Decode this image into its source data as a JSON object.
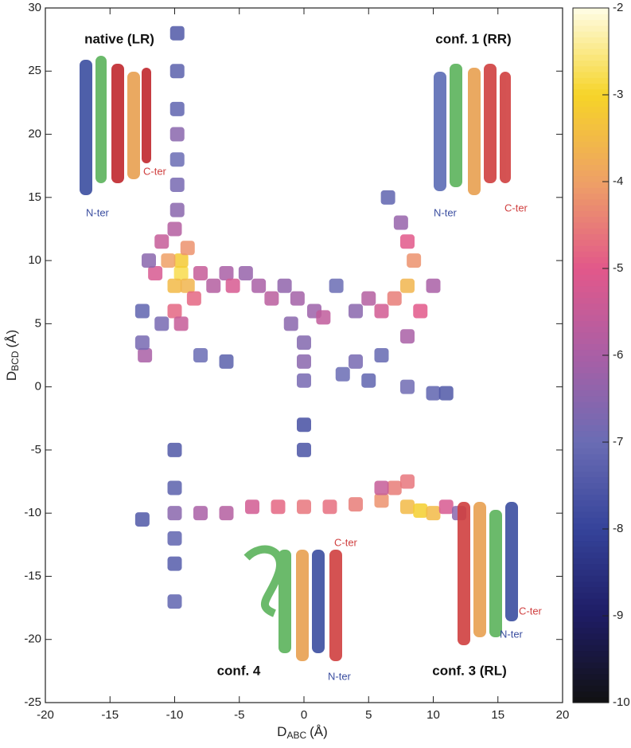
{
  "chart_data": {
    "type": "heatmap",
    "xlabel": {
      "main": "D",
      "sub": "ABC",
      "unit": "(Å)"
    },
    "ylabel": {
      "main": "D",
      "sub": "BCD",
      "unit": "(Å)"
    },
    "xlim": [
      -20,
      20
    ],
    "xticks": [
      -20,
      -15,
      -10,
      -5,
      0,
      5,
      10,
      15,
      20
    ],
    "ylim": [
      -25,
      30
    ],
    "yticks": [
      -25,
      -20,
      -15,
      -10,
      -5,
      0,
      5,
      10,
      15,
      20,
      25,
      30
    ],
    "zlim": [
      -10,
      -2
    ],
    "zticks": [
      -10,
      -9,
      -8,
      -7,
      -6,
      -5,
      -4,
      -3,
      -2
    ],
    "colormap": [
      "#111111",
      "#1e1c64",
      "#35439a",
      "#6a6cb4",
      "#a95fa6",
      "#e2588a",
      "#eea066",
      "#f6d428",
      "#fffde6"
    ],
    "cells": {
      "x": [
        -9.5,
        -9.5,
        -10,
        -9,
        -10.5,
        -9,
        -10,
        -9.5,
        -11,
        -11.5,
        -8.5,
        -10,
        -9.8,
        -9.8,
        -9.8,
        -9.8,
        -9.8,
        -9.8,
        -9.8,
        -12,
        -11,
        -12.5,
        -8,
        -7,
        -6,
        -5.5,
        -4.5,
        -3.5,
        -2.5,
        -1.5,
        -0.5,
        0.8,
        1.5,
        2.5,
        -1,
        -8,
        -6,
        8,
        8.5,
        8,
        7,
        6,
        9,
        5,
        4,
        8,
        7.5,
        6.5,
        10,
        0,
        0,
        0,
        3,
        4,
        5,
        8,
        10,
        11,
        6,
        -12.3,
        -12.5,
        -10,
        -8,
        -6,
        -4,
        -2,
        0,
        2,
        4,
        6,
        7,
        8,
        9,
        10,
        11,
        8,
        6,
        -12.5,
        12,
        -10,
        -10,
        -10,
        -10,
        -10,
        0,
        0
      ],
      "y": [
        9,
        10,
        8,
        8,
        10,
        11,
        6,
        5,
        11.5,
        9,
        7,
        12.5,
        14,
        16,
        18,
        20,
        22,
        25,
        28,
        10,
        5,
        6,
        9,
        8,
        9,
        8,
        9,
        8,
        7,
        8,
        7,
        6,
        5.5,
        8,
        5,
        2.5,
        2,
        8,
        10,
        11.5,
        7,
        6,
        6,
        7,
        6,
        4,
        13,
        15,
        8,
        2,
        0.5,
        3.5,
        1,
        2,
        0.5,
        0,
        -0.5,
        -0.5,
        2.5,
        2.5,
        3.5,
        -10,
        -10,
        -10,
        -9.5,
        -9.5,
        -9.5,
        -9.5,
        -9.3,
        -9,
        -8,
        -9.5,
        -9.8,
        -10,
        -9.5,
        -7.5,
        -8,
        -10.5,
        -10,
        -5,
        -8,
        -12,
        -14,
        -17,
        -5,
        -3
      ],
      "values": [
        -2.8,
        -3.2,
        -3.5,
        -3.6,
        -4,
        -4.2,
        -4.8,
        -5.5,
        -5.5,
        -5.2,
        -4.8,
        -5.8,
        -6.5,
        -6.8,
        -7,
        -6.5,
        -7.2,
        -7.3,
        -7.5,
        -6.5,
        -6.8,
        -7.2,
        -5.5,
        -5.8,
        -6,
        -5.2,
        -6.3,
        -6,
        -5.7,
        -6.4,
        -6.1,
        -6.2,
        -5.6,
        -7,
        -6.5,
        -7,
        -7.3,
        -3.6,
        -4.2,
        -5,
        -4.5,
        -5.3,
        -5,
        -5.8,
        -6.5,
        -6,
        -6.3,
        -7.2,
        -6,
        -6.5,
        -6.8,
        -6.6,
        -7,
        -6.8,
        -7.2,
        -6.9,
        -7.2,
        -7.5,
        -7.1,
        -6,
        -6.8,
        -6.5,
        -6,
        -5.8,
        -5.3,
        -4.8,
        -4.6,
        -4.7,
        -4.5,
        -4.2,
        -4.5,
        -3.5,
        -3.1,
        -3.5,
        -5.2,
        -4.6,
        -5.5,
        -7.5,
        -6.5,
        -7.5,
        -7.3,
        -7.2,
        -7.4,
        -7.2,
        -7.6,
        -7.7
      ]
    }
  },
  "annotations": {
    "native": "native (LR)",
    "conf1": "conf. 1 (RR)",
    "conf4": "conf. 4",
    "conf3": "conf. 3 (RL)",
    "nter": [
      "N-ter",
      "N-ter",
      "N-ter",
      "N-ter"
    ],
    "cter": [
      "C-ter",
      "C-ter",
      "C-ter",
      "C-ter"
    ]
  }
}
